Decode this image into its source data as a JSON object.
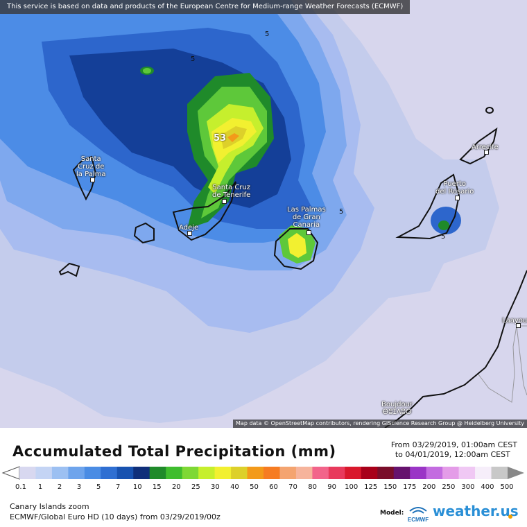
{
  "map": {
    "notice": "This service is based on data and products of the European Centre for Medium-range Weather Forecasts (ECMWF)",
    "attribution": "Map data © OpenStreetMap contributors, rendering GIScience Research Group @ Heidelberg University",
    "cities": [
      {
        "label": "Santa\nCruz de\nla Palma"
      },
      {
        "label": "Santa Cruz\nde Tenerife"
      },
      {
        "label": "Adeje"
      },
      {
        "label": "Las Palmas\nde Gran\nCanaria"
      },
      {
        "label": "Puerto\ndel Rosario"
      },
      {
        "label": "Arrecife"
      },
      {
        "label": "Laayoune"
      },
      {
        "label": "Boujdour\nⴱⵓⵊⴷⵓⵔ"
      }
    ],
    "contour_labels": [
      "5",
      "5",
      "5",
      "5",
      "53"
    ],
    "colors": {
      "sea_light": "#c6cbeb",
      "land": "#d7d6ed"
    }
  },
  "legend": {
    "title": "Accumulated Total Precipitation (mm)",
    "from": "From 03/29/2019, 01:00am CEST",
    "to": "to 04/01/2019, 12:00am CEST",
    "region": "Canary Islands zoom",
    "model_line": "ECMWF/Global Euro HD (10 days) from 03/29/2019/00z",
    "model_label": "Model:",
    "ecmwf_text": "ECMWF",
    "brand": "weather.us",
    "ticks": [
      "0.1",
      "1",
      "2",
      "3",
      "5",
      "7",
      "10",
      "15",
      "20",
      "25",
      "30",
      "40",
      "50",
      "60",
      "70",
      "80",
      "90",
      "100",
      "125",
      "150",
      "175",
      "200",
      "250",
      "300",
      "400",
      "500"
    ],
    "colorbar": [
      "#d8d8f0",
      "#c4d4f4",
      "#9cc0f2",
      "#6ea4ec",
      "#4a8ce4",
      "#2f6fd2",
      "#1852b0",
      "#0f2f7a",
      "#1f8a2a",
      "#3fbd2e",
      "#7ed835",
      "#c6ef2d",
      "#f2f030",
      "#ddd02a",
      "#f39a1a",
      "#f67c22",
      "#f4a470",
      "#f6b49c",
      "#f2648a",
      "#e83a5c",
      "#d9182c",
      "#a8001a",
      "#7a0d2a",
      "#66126e",
      "#9a35c6",
      "#c36ce0",
      "#e49ce8",
      "#f0c8f4",
      "#f6eefa",
      "#c8c8c8"
    ]
  }
}
